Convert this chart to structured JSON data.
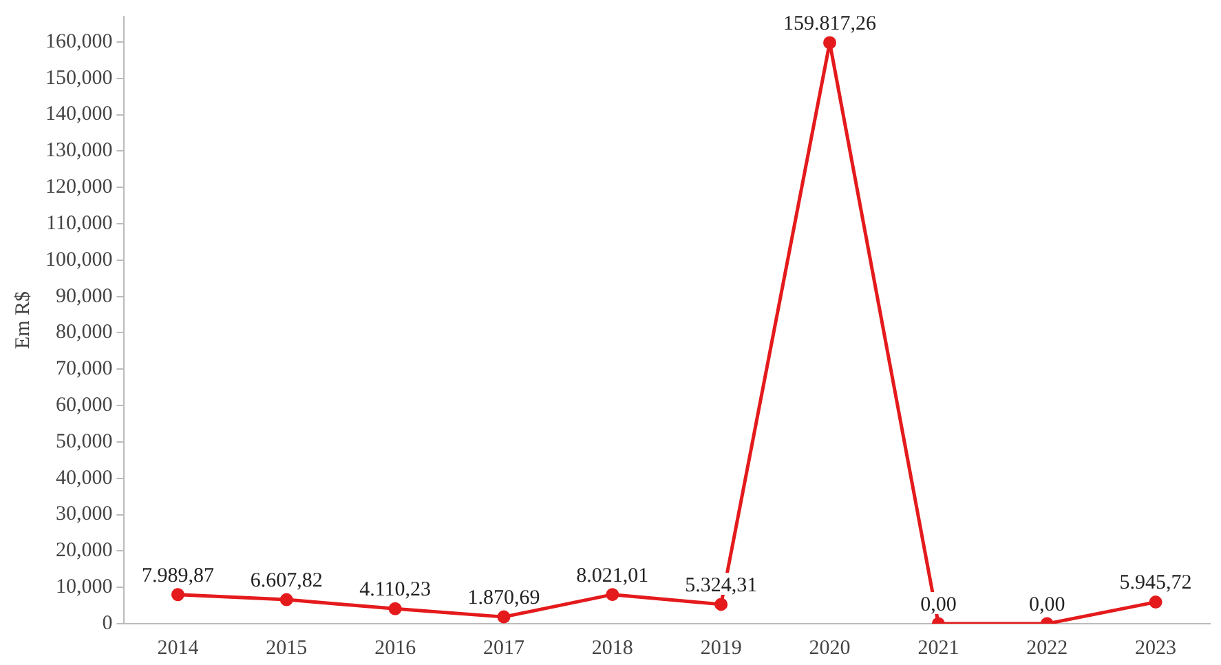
{
  "chart_data": {
    "type": "line",
    "ylabel": "Em R$",
    "categories": [
      "2014",
      "2015",
      "2016",
      "2017",
      "2018",
      "2019",
      "2020",
      "2021",
      "2022",
      "2023"
    ],
    "series": [
      {
        "color": "#e41a1c",
        "values": [
          7989.87,
          6607.82,
          4110.23,
          1870.69,
          8021.01,
          5324.31,
          159817.26,
          0,
          0,
          5945.72
        ],
        "value_labels": [
          "7.989,87",
          "6.607,82",
          "4.110,23",
          "1.870,69",
          "8.021,01",
          "5.324,31",
          "159.817,26",
          "0,00",
          "0,00",
          "5.945,72"
        ]
      }
    ],
    "ylim": [
      0,
      167000
    ],
    "yticks": [
      {
        "value": 0,
        "label": "0"
      },
      {
        "value": 10000,
        "label": "10,000"
      },
      {
        "value": 20000,
        "label": "20,000"
      },
      {
        "value": 30000,
        "label": "30,000"
      },
      {
        "value": 40000,
        "label": "40,000"
      },
      {
        "value": 50000,
        "label": "50,000"
      },
      {
        "value": 60000,
        "label": "60,000"
      },
      {
        "value": 70000,
        "label": "70,000"
      },
      {
        "value": 80000,
        "label": "80,000"
      },
      {
        "value": 90000,
        "label": "90,000"
      },
      {
        "value": 100000,
        "label": "100,000"
      },
      {
        "value": 110000,
        "label": "110,000"
      },
      {
        "value": 120000,
        "label": "120,000"
      },
      {
        "value": 130000,
        "label": "130,000"
      },
      {
        "value": 140000,
        "label": "140,000"
      },
      {
        "value": 150000,
        "label": "150,000"
      },
      {
        "value": 160000,
        "label": "160,000"
      }
    ],
    "grid": false,
    "legend": false,
    "marker": "circle",
    "line_style": "solid"
  }
}
